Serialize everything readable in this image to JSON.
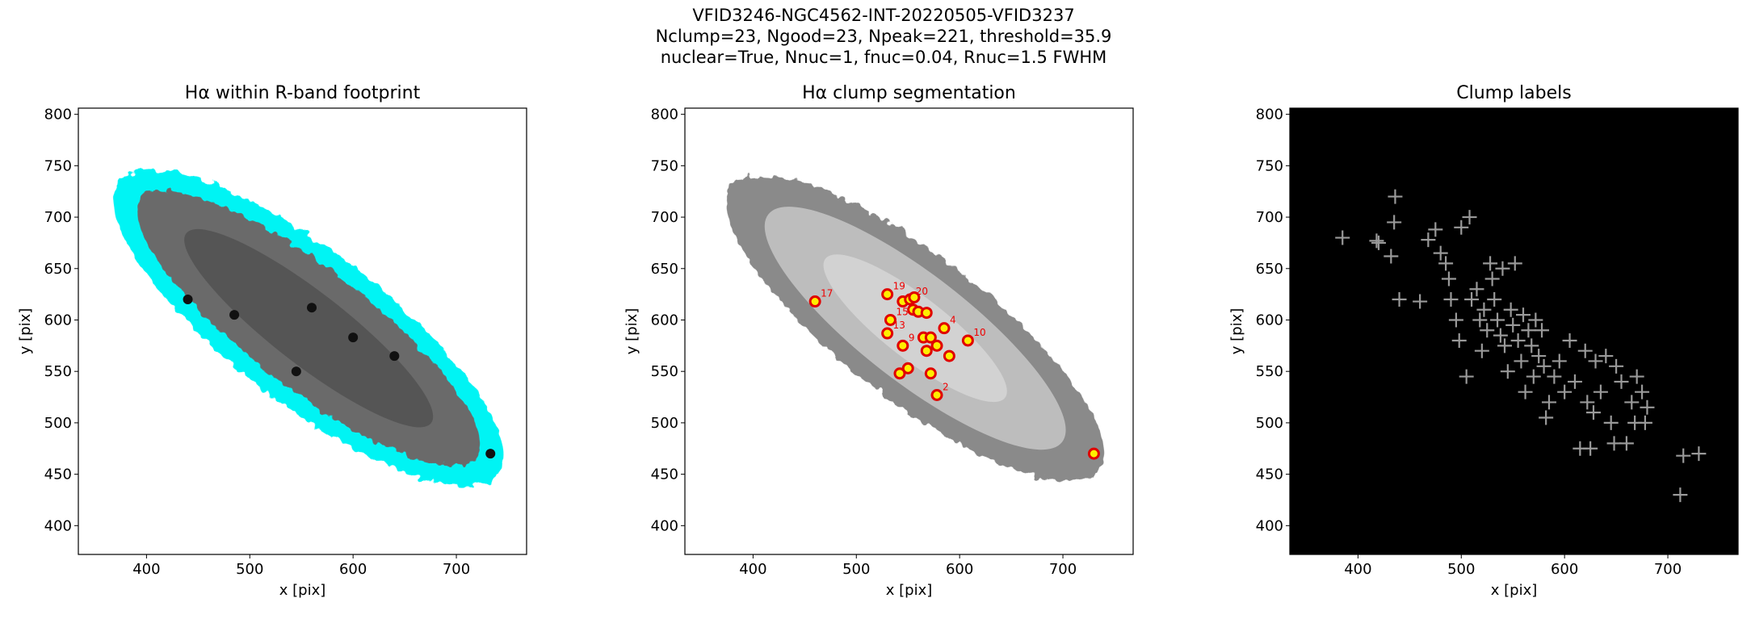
{
  "suptitle": [
    "VFID3246-NGC4562-INT-20220505-VFID3237",
    "Nclump=23, Ngood=23, Npeak=221, threshold=35.9",
    "nuclear=True, Nnuc=1, fnuc=0.04, Rnuc=1.5 FWHM"
  ],
  "chart_data": [
    {
      "type": "image",
      "title": "Hα within R-band footprint",
      "xlabel": "x [pix]",
      "ylabel": "y [pix]",
      "xlim": [
        334,
        768
      ],
      "ylim": [
        372,
        806
      ],
      "xticks": [
        400,
        500,
        600,
        700
      ],
      "yticks": [
        400,
        450,
        500,
        550,
        600,
        650,
        700,
        750,
        800
      ]
    },
    {
      "type": "scatter",
      "title": "Hα clump segmentation",
      "xlabel": "x [pix]",
      "ylabel": "y [pix]",
      "xlim": [
        334,
        768
      ],
      "ylim": [
        372,
        806
      ],
      "xticks": [
        400,
        500,
        600,
        700
      ],
      "yticks": [
        400,
        450,
        500,
        550,
        600,
        650,
        700,
        750,
        800
      ],
      "background": "image",
      "marker": "circle",
      "color": "#ffee00",
      "edgecolor": "#e00000",
      "x": [
        460,
        530,
        545,
        552,
        556,
        555,
        560,
        568,
        533,
        530,
        565,
        572,
        578,
        545,
        585,
        608,
        590,
        568,
        550,
        542,
        572,
        578,
        730
      ],
      "y": [
        618,
        625,
        618,
        620,
        622,
        610,
        608,
        607,
        600,
        587,
        583,
        583,
        575,
        575,
        592,
        580,
        565,
        570,
        553,
        548,
        548,
        527,
        470
      ],
      "labels": [
        "17",
        "19",
        null,
        "20",
        null,
        null,
        null,
        null,
        "15",
        "13",
        null,
        null,
        null,
        "9",
        "4",
        "10",
        null,
        null,
        null,
        null,
        null,
        "2",
        null
      ]
    },
    {
      "type": "scatter",
      "title": "Clump labels",
      "xlabel": "x [pix]",
      "ylabel": "y [pix]",
      "xlim": [
        334,
        768
      ],
      "ylim": [
        372,
        806
      ],
      "xticks": [
        400,
        500,
        600,
        700
      ],
      "yticks": [
        400,
        450,
        500,
        550,
        600,
        650,
        700,
        750,
        800
      ],
      "background": "#000000",
      "marker": "cross",
      "color": "#999999",
      "x": [
        385,
        418,
        420,
        432,
        435,
        436,
        440,
        460,
        468,
        475,
        480,
        485,
        488,
        490,
        495,
        498,
        500,
        505,
        508,
        510,
        515,
        518,
        520,
        522,
        525,
        528,
        530,
        532,
        535,
        538,
        540,
        542,
        545,
        548,
        550,
        552,
        555,
        558,
        560,
        562,
        565,
        568,
        570,
        572,
        575,
        578,
        580,
        582,
        585,
        590,
        595,
        600,
        605,
        610,
        615,
        620,
        622,
        625,
        628,
        630,
        635,
        640,
        645,
        648,
        650,
        655,
        660,
        665,
        668,
        670,
        675,
        678,
        680,
        712,
        715,
        730
      ],
      "y": [
        680,
        677,
        675,
        662,
        695,
        720,
        620,
        618,
        678,
        688,
        665,
        655,
        640,
        620,
        600,
        580,
        690,
        545,
        700,
        620,
        630,
        600,
        570,
        610,
        590,
        655,
        640,
        620,
        600,
        585,
        650,
        575,
        550,
        610,
        595,
        655,
        580,
        560,
        605,
        530,
        590,
        575,
        545,
        600,
        565,
        590,
        555,
        505,
        520,
        545,
        560,
        530,
        580,
        540,
        475,
        570,
        520,
        475,
        510,
        560,
        530,
        565,
        500,
        480,
        555,
        540,
        480,
        520,
        500,
        545,
        530,
        500,
        515,
        430,
        468,
        470
      ]
    }
  ]
}
